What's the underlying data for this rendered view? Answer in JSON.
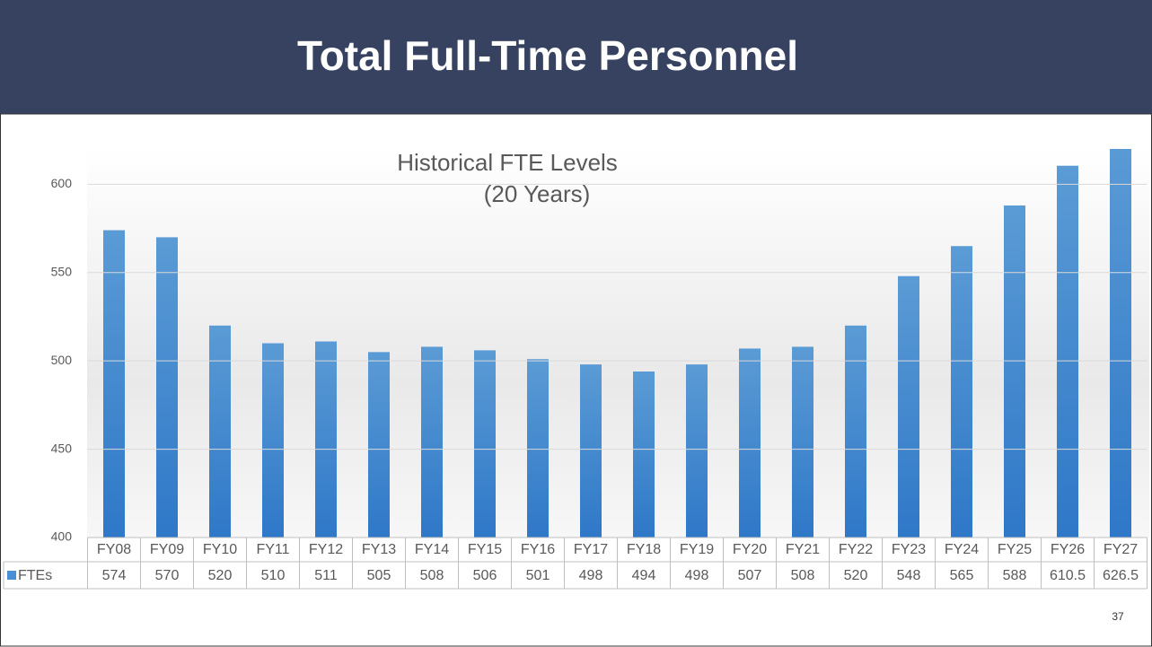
{
  "header": {
    "title": "Total Full-Time Personnel"
  },
  "page_number": "37",
  "chart_data": {
    "type": "bar",
    "title": "Historical FTE Levels",
    "subtitle": "(20 Years)",
    "categories": [
      "FY08",
      "FY09",
      "FY10",
      "FY11",
      "FY12",
      "FY13",
      "FY14",
      "FY15",
      "FY16",
      "FY17",
      "FY18",
      "FY19",
      "FY20",
      "FY21",
      "FY22",
      "FY23",
      "FY24",
      "FY25",
      "FY26",
      "FY27"
    ],
    "series": [
      {
        "name": "FTEs",
        "color": "#4a8fd6",
        "values": [
          574,
          570,
          520,
          510,
          511,
          505,
          508,
          506,
          501,
          498,
          494,
          498,
          507,
          508,
          520,
          548,
          565,
          588,
          610.5,
          626.5
        ]
      }
    ],
    "ylim": [
      400,
      620
    ],
    "yticks": [
      400,
      450,
      500,
      550,
      600
    ],
    "grid": true,
    "data_table": true
  }
}
